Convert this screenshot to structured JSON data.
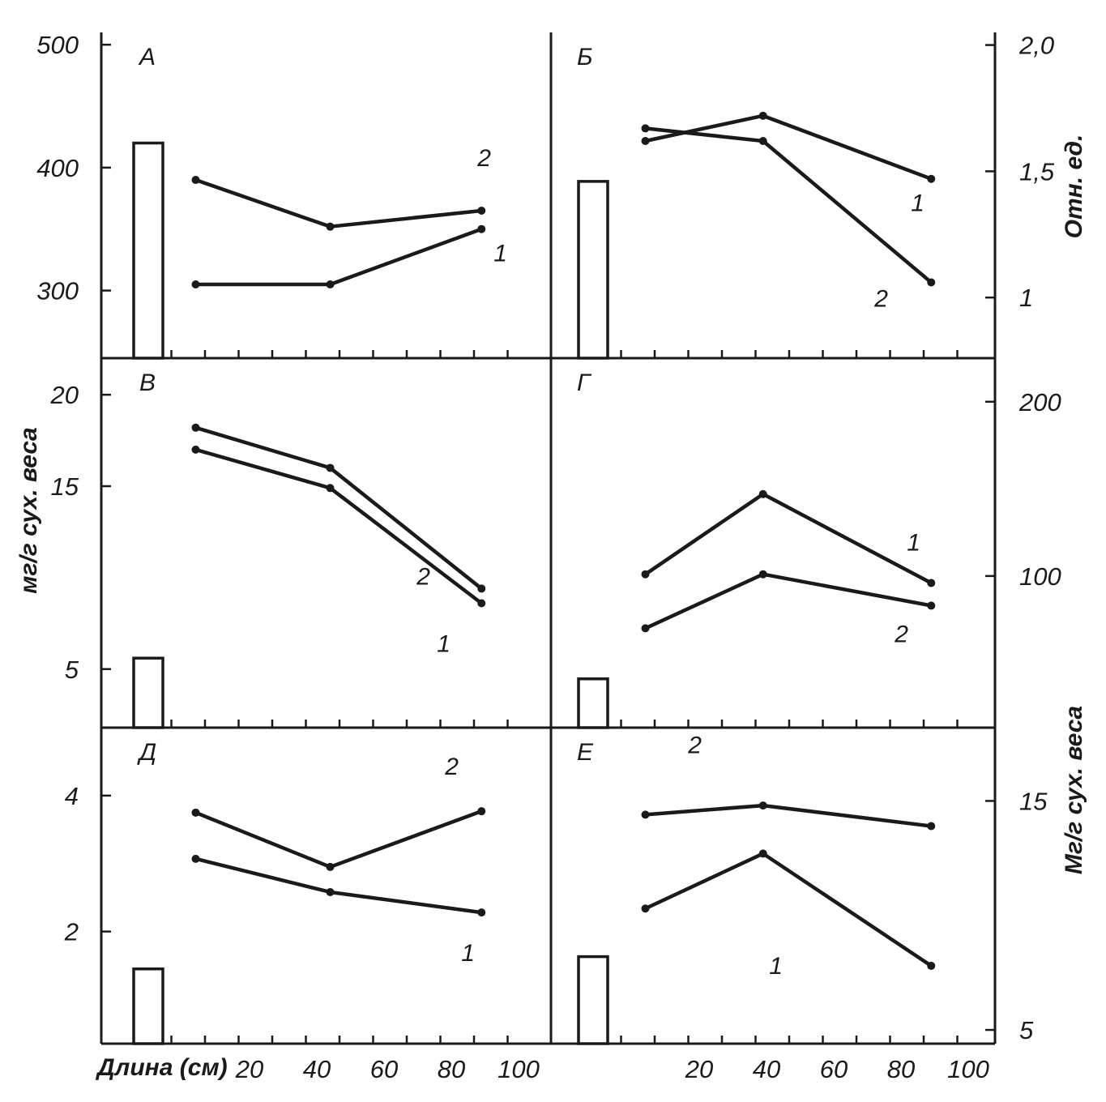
{
  "figure": {
    "x_axis": {
      "title": "Длина (см)",
      "ticks": [
        20,
        40,
        60,
        80,
        100
      ],
      "tick_labels": [
        "20",
        "40",
        "60",
        "80",
        "100"
      ]
    },
    "left_axis_title": "мг/г сух. веса",
    "right_axis_top_title": "Отн. ед.",
    "right_axis_bottom_title": "Мг/г сух. веса"
  },
  "chart_data": [
    {
      "type": "line",
      "panel": "А",
      "y_axis_side": "left",
      "ylim": [
        245,
        510
      ],
      "yticks": [
        300,
        400,
        500
      ],
      "ytick_labels": [
        "300",
        "400",
        "500"
      ],
      "bar_value": 420,
      "series": [
        {
          "name": "1",
          "x": [
            10,
            50,
            95
          ],
          "y": [
            305,
            305,
            350
          ]
        },
        {
          "name": "2",
          "x": [
            10,
            50,
            95
          ],
          "y": [
            390,
            352,
            365
          ]
        }
      ]
    },
    {
      "type": "line",
      "panel": "Б",
      "y_axis_side": "right",
      "ylim": [
        0.76,
        2.05
      ],
      "yticks": [
        1.0,
        1.5,
        2.0
      ],
      "ytick_labels": [
        "1",
        "1,5",
        "2,0"
      ],
      "bar_value": 1.46,
      "series": [
        {
          "name": "1",
          "x": [
            10,
            45,
            95
          ],
          "y": [
            1.62,
            1.72,
            1.47
          ]
        },
        {
          "name": "2",
          "x": [
            10,
            45,
            95
          ],
          "y": [
            1.67,
            1.62,
            1.06
          ]
        }
      ]
    },
    {
      "type": "line",
      "panel": "В",
      "y_axis_side": "left",
      "ylim": [
        1.8,
        22
      ],
      "yticks": [
        5,
        15,
        20
      ],
      "ytick_labels": [
        "5",
        "15",
        "20"
      ],
      "bar_value": 5.6,
      "series": [
        {
          "name": "1",
          "x": [
            10,
            50,
            95
          ],
          "y": [
            17,
            14.9,
            8.6
          ]
        },
        {
          "name": "2",
          "x": [
            10,
            50,
            95
          ],
          "y": [
            18.2,
            16,
            9.4
          ]
        }
      ]
    },
    {
      "type": "line",
      "panel": "Г",
      "y_axis_side": "right",
      "ylim": [
        13,
        225
      ],
      "yticks": [
        100,
        200
      ],
      "ytick_labels": [
        "100",
        "200"
      ],
      "bar_value": 41,
      "series": [
        {
          "name": "1",
          "x": [
            10,
            45,
            95
          ],
          "y": [
            101,
            147,
            96
          ]
        },
        {
          "name": "2",
          "x": [
            10,
            45,
            95
          ],
          "y": [
            70,
            101,
            83
          ]
        }
      ]
    },
    {
      "type": "line",
      "panel": "Д",
      "y_axis_side": "left",
      "ylim": [
        0.35,
        5.0
      ],
      "yticks": [
        2,
        4
      ],
      "ytick_labels": [
        "2",
        "4"
      ],
      "bar_value": 1.45,
      "series": [
        {
          "name": "1",
          "x": [
            10,
            50,
            95
          ],
          "y": [
            3.07,
            2.58,
            2.28
          ]
        },
        {
          "name": "2",
          "x": [
            10,
            50,
            95
          ],
          "y": [
            3.75,
            2.95,
            3.77
          ]
        }
      ]
    },
    {
      "type": "line",
      "panel": "Е",
      "y_axis_side": "right",
      "ylim": [
        4.4,
        18.2
      ],
      "yticks": [
        5,
        15
      ],
      "ytick_labels": [
        "5",
        "15"
      ],
      "bar_value": 8.2,
      "series": [
        {
          "name": "1",
          "x": [
            10,
            45,
            95
          ],
          "y": [
            10.3,
            12.7,
            7.8
          ]
        },
        {
          "name": "2",
          "x": [
            10,
            45,
            95
          ],
          "y": [
            14.4,
            14.8,
            13.9
          ]
        }
      ]
    }
  ]
}
